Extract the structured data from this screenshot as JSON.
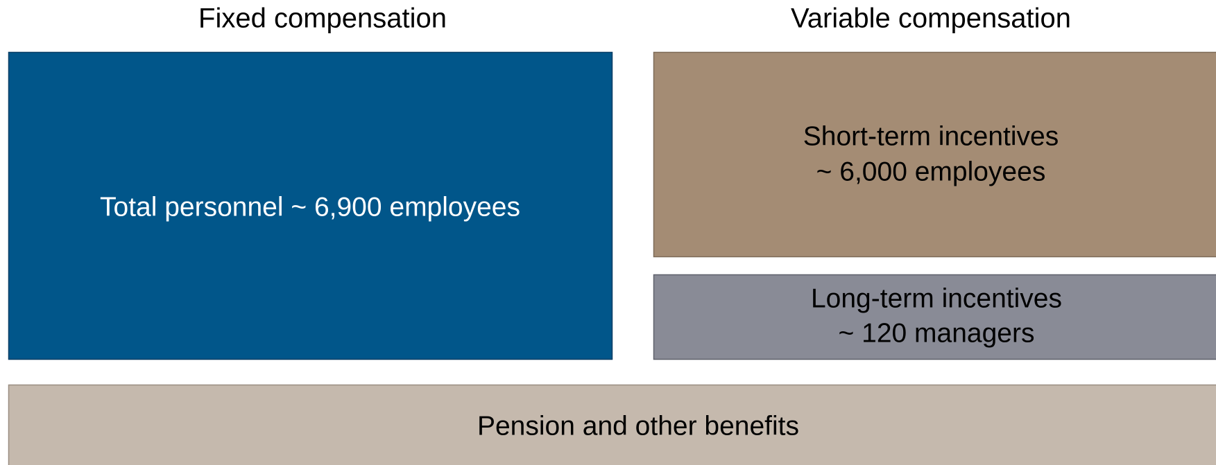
{
  "headers": {
    "fixed": "Fixed compensation",
    "variable": "Variable compensation"
  },
  "boxes": {
    "fixed": {
      "lines": [
        "Total personnel ~ 6,900 employees"
      ]
    },
    "short_term": {
      "lines": [
        "Short-term incentives",
        "~ 6,000 employees"
      ]
    },
    "long_term": {
      "lines": [
        "Long-term incentives",
        "~ 120 managers"
      ]
    },
    "benefits": {
      "lines": [
        "Pension and other benefits"
      ]
    }
  }
}
